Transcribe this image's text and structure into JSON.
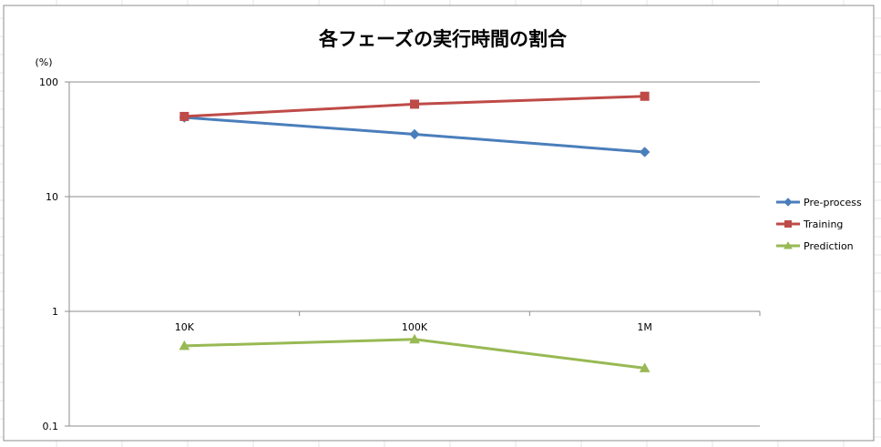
{
  "chart_data": {
    "type": "line",
    "title": "各フェーズの実行時間の割合",
    "ylabel": "(%)",
    "xlabel": "",
    "y_scale": "log",
    "ylim": [
      0.1,
      100
    ],
    "y_ticks": [
      "100",
      "10",
      "1",
      "0.1"
    ],
    "y_tick_values": [
      100,
      10,
      1,
      0.1
    ],
    "categories": [
      "10K",
      "100K",
      "1M"
    ],
    "grid": "horizontal major gridlines",
    "legend_position": "right",
    "series": [
      {
        "name": "Pre-process",
        "values": [
          49,
          35,
          24.5
        ],
        "color": "#4a7ebb",
        "marker": "diamond"
      },
      {
        "name": "Training",
        "values": [
          50,
          64,
          75
        ],
        "color": "#be4b48",
        "marker": "square"
      },
      {
        "name": "Prediction",
        "values": [
          0.5,
          0.57,
          0.32
        ],
        "color": "#98b954",
        "marker": "triangle"
      }
    ]
  }
}
